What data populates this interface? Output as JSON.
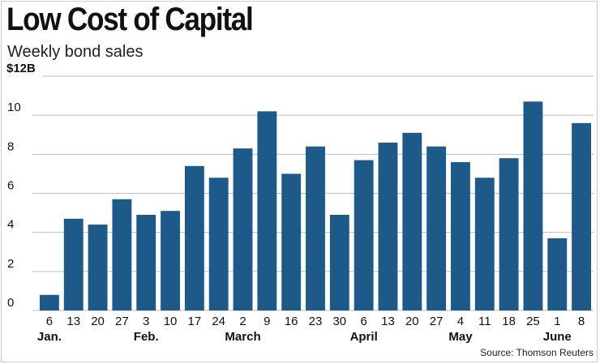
{
  "chart_data": {
    "type": "bar",
    "title": "Low Cost of Capital",
    "subtitle": "Weekly bond sales",
    "source": "Source: Thomson Reuters",
    "ylabel": "",
    "ylim": [
      0,
      12
    ],
    "yticks": [
      0,
      2,
      4,
      6,
      8,
      10,
      12
    ],
    "ytick_labels": [
      "0",
      "2",
      "4",
      "6",
      "8",
      "10",
      "$12B"
    ],
    "grid": true,
    "bar_color": "#1d5a8a",
    "categories": [
      "6",
      "13",
      "20",
      "27",
      "3",
      "10",
      "17",
      "24",
      "2",
      "9",
      "16",
      "23",
      "30",
      "6",
      "13",
      "20",
      "27",
      "4",
      "11",
      "18",
      "25",
      "1",
      "8"
    ],
    "values": [
      0.8,
      4.7,
      4.4,
      5.7,
      4.9,
      5.1,
      7.4,
      6.8,
      8.3,
      10.2,
      7.0,
      8.4,
      4.9,
      7.7,
      8.6,
      9.1,
      8.4,
      7.6,
      6.8,
      7.8,
      10.7,
      3.7,
      9.6
    ],
    "month_labels": [
      {
        "label": "Jan.",
        "at_index": 0
      },
      {
        "label": "Feb.",
        "at_index": 4
      },
      {
        "label": "March",
        "at_index": 8
      },
      {
        "label": "April",
        "at_index": 13
      },
      {
        "label": "May",
        "at_index": 17
      },
      {
        "label": "June",
        "at_index": 21
      }
    ]
  }
}
